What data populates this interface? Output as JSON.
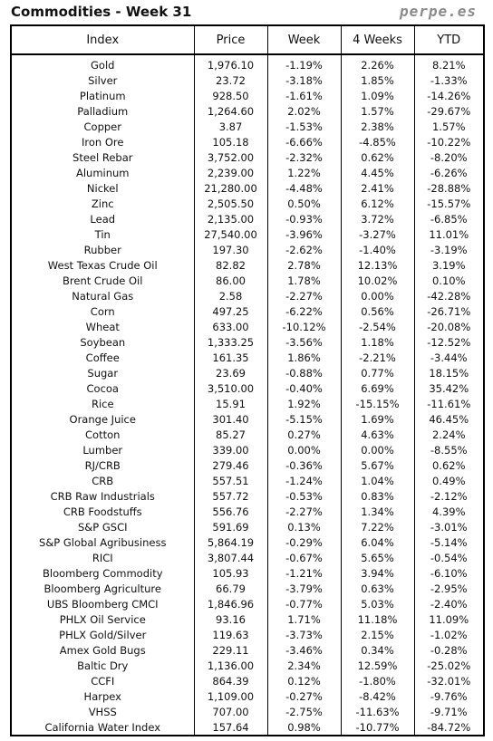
{
  "title": "Commodities - Week 31",
  "brand": "perpe.es",
  "colors": {
    "positive": "#1a9a2a",
    "negative": "#e02020"
  },
  "table": {
    "headers": [
      "Index",
      "Price",
      "Week",
      "4 Weeks",
      "YTD"
    ],
    "rows": [
      [
        "Gold",
        "1,976.10",
        "-1.19%",
        "2.26%",
        "8.21%"
      ],
      [
        "Silver",
        "23.72",
        "-3.18%",
        "1.85%",
        "-1.33%"
      ],
      [
        "Platinum",
        "928.50",
        "-1.61%",
        "1.09%",
        "-14.26%"
      ],
      [
        "Palladium",
        "1,264.60",
        "2.02%",
        "1.57%",
        "-29.67%"
      ],
      [
        "Copper",
        "3.87",
        "-1.53%",
        "2.38%",
        "1.57%"
      ],
      [
        "Iron Ore",
        "105.18",
        "-6.66%",
        "-4.85%",
        "-10.22%"
      ],
      [
        "Steel Rebar",
        "3,752.00",
        "-2.32%",
        "0.62%",
        "-8.20%"
      ],
      [
        "Aluminum",
        "2,239.00",
        "1.22%",
        "4.45%",
        "-6.26%"
      ],
      [
        "Nickel",
        "21,280.00",
        "-4.48%",
        "2.41%",
        "-28.88%"
      ],
      [
        "Zinc",
        "2,505.50",
        "0.50%",
        "6.12%",
        "-15.57%"
      ],
      [
        "Lead",
        "2,135.00",
        "-0.93%",
        "3.72%",
        "-6.85%"
      ],
      [
        "Tin",
        "27,540.00",
        "-3.96%",
        "-3.27%",
        "11.01%"
      ],
      [
        "Rubber",
        "197.30",
        "-2.62%",
        "-1.40%",
        "-3.19%"
      ],
      [
        "West Texas Crude Oil",
        "82.82",
        "2.78%",
        "12.13%",
        "3.19%"
      ],
      [
        "Brent Crude Oil",
        "86.00",
        "1.78%",
        "10.02%",
        "0.10%"
      ],
      [
        "Natural Gas",
        "2.58",
        "-2.27%",
        "0.00%",
        "-42.28%"
      ],
      [
        "Corn",
        "497.25",
        "-6.22%",
        "0.56%",
        "-26.71%"
      ],
      [
        "Wheat",
        "633.00",
        "-10.12%",
        "-2.54%",
        "-20.08%"
      ],
      [
        "Soybean",
        "1,333.25",
        "-3.56%",
        "1.18%",
        "-12.52%"
      ],
      [
        "Coffee",
        "161.35",
        "1.86%",
        "-2.21%",
        "-3.44%"
      ],
      [
        "Sugar",
        "23.69",
        "-0.88%",
        "0.77%",
        "18.15%"
      ],
      [
        "Cocoa",
        "3,510.00",
        "-0.40%",
        "6.69%",
        "35.42%"
      ],
      [
        "Rice",
        "15.91",
        "1.92%",
        "-15.15%",
        "-11.61%"
      ],
      [
        "Orange Juice",
        "301.40",
        "-5.15%",
        "1.69%",
        "46.45%"
      ],
      [
        "Cotton",
        "85.27",
        "0.27%",
        "4.63%",
        "2.24%"
      ],
      [
        "Lumber",
        "339.00",
        "0.00%",
        "0.00%",
        "-8.55%"
      ],
      [
        "RJ/CRB",
        "279.46",
        "-0.36%",
        "5.67%",
        "0.62%"
      ],
      [
        "CRB",
        "557.51",
        "-1.24%",
        "1.04%",
        "0.49%"
      ],
      [
        "CRB Raw Industrials",
        "557.72",
        "-0.53%",
        "0.83%",
        "-2.12%"
      ],
      [
        "CRB Foodstuffs",
        "556.76",
        "-2.27%",
        "1.34%",
        "4.39%"
      ],
      [
        "S&P GSCI",
        "591.69",
        "0.13%",
        "7.22%",
        "-3.01%"
      ],
      [
        "S&P Global Agribusiness",
        "5,864.19",
        "-0.29%",
        "6.04%",
        "-5.14%"
      ],
      [
        "RICI",
        "3,807.44",
        "-0.67%",
        "5.65%",
        "-0.54%"
      ],
      [
        "Bloomberg Commodity",
        "105.93",
        "-1.21%",
        "3.94%",
        "-6.10%"
      ],
      [
        "Bloomberg Agriculture",
        "66.79",
        "-3.79%",
        "0.63%",
        "-2.95%"
      ],
      [
        "UBS Bloomberg CMCI",
        "1,846.96",
        "-0.77%",
        "5.03%",
        "-2.40%"
      ],
      [
        "PHLX Oil Service",
        "93.16",
        "1.71%",
        "11.18%",
        "11.09%"
      ],
      [
        "PHLX Gold/Silver",
        "119.63",
        "-3.73%",
        "2.15%",
        "-1.02%"
      ],
      [
        "Amex Gold Bugs",
        "229.11",
        "-3.46%",
        "0.34%",
        "-0.28%"
      ],
      [
        "Baltic Dry",
        "1,136.00",
        "2.34%",
        "12.59%",
        "-25.02%"
      ],
      [
        "CCFI",
        "864.39",
        "0.12%",
        "-1.80%",
        "-32.01%"
      ],
      [
        "Harpex",
        "1,109.00",
        "-0.27%",
        "-8.42%",
        "-9.76%"
      ],
      [
        "VHSS",
        "707.00",
        "-2.75%",
        "-11.63%",
        "-9.71%"
      ],
      [
        "California Water Index",
        "157.64",
        "0.98%",
        "-10.77%",
        "-84.72%"
      ]
    ]
  }
}
